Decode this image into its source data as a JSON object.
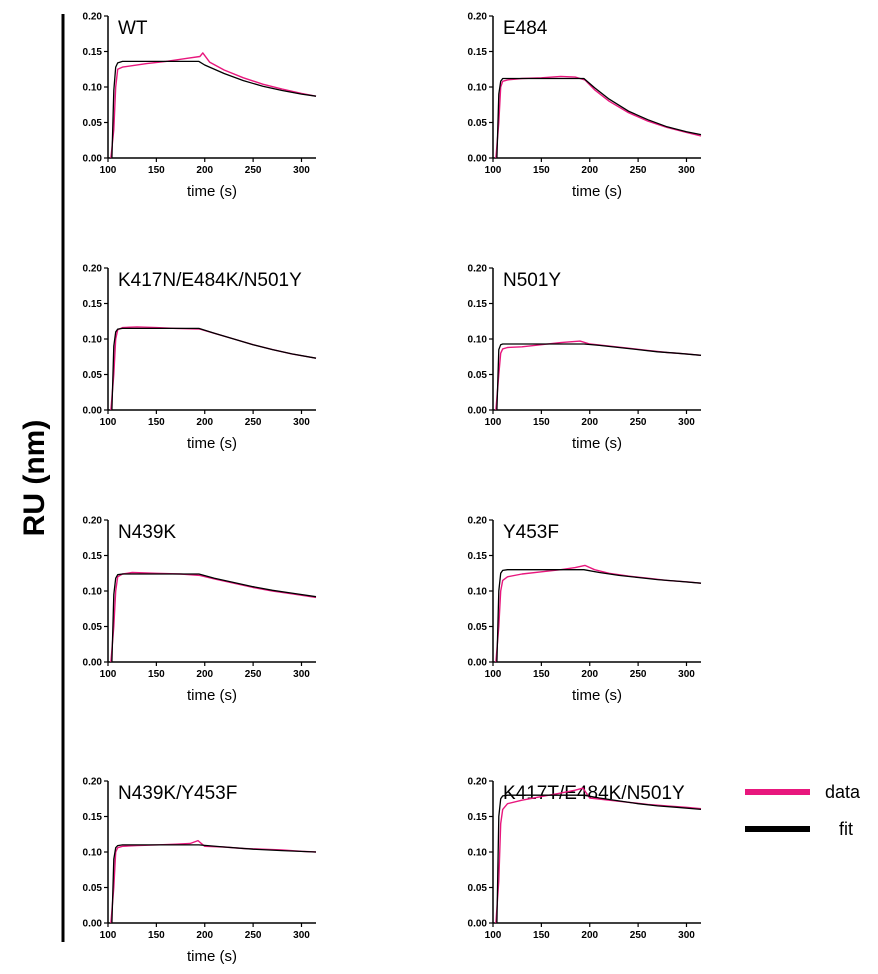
{
  "shared_ylabel": "RU (nm)",
  "legend": [
    {
      "label": "data",
      "color": "#e8177d"
    },
    {
      "label": "fit",
      "color": "#000000"
    }
  ],
  "colors": {
    "data": "#e8177d",
    "fit": "#000000",
    "axis": "#000000"
  },
  "chart_data": [
    {
      "type": "line",
      "title": "WT",
      "xlabel": "time (s)",
      "ylabel": "",
      "xlim": [
        100,
        315
      ],
      "ylim": [
        0,
        0.2
      ],
      "xticks": [
        100,
        150,
        200,
        250,
        300
      ],
      "xtick_labels": [
        "100",
        "150",
        "200",
        "250",
        "300"
      ],
      "yticks": [
        0,
        0.05,
        0.1,
        0.15,
        0.2
      ],
      "ytick_labels": [
        "0.00",
        "0.05",
        "0.10",
        "0.15",
        "0.20"
      ],
      "series": [
        {
          "name": "data",
          "x": [
            103,
            106,
            108,
            110,
            115,
            125,
            140,
            160,
            180,
            195,
            198,
            205,
            220,
            240,
            260,
            280,
            300,
            315
          ],
          "y": [
            0.0,
            0.04,
            0.1,
            0.125,
            0.128,
            0.13,
            0.133,
            0.136,
            0.14,
            0.143,
            0.148,
            0.135,
            0.124,
            0.113,
            0.104,
            0.097,
            0.091,
            0.087
          ]
        },
        {
          "name": "fit",
          "x": [
            104,
            106,
            108,
            110,
            115,
            125,
            150,
            175,
            194,
            200,
            220,
            240,
            260,
            280,
            300,
            315
          ],
          "y": [
            0.0,
            0.095,
            0.128,
            0.134,
            0.136,
            0.136,
            0.136,
            0.136,
            0.136,
            0.131,
            0.119,
            0.109,
            0.101,
            0.095,
            0.09,
            0.087
          ]
        }
      ]
    },
    {
      "type": "line",
      "title": "E484",
      "xlabel": "time (s)",
      "ylabel": "",
      "xlim": [
        100,
        315
      ],
      "ylim": [
        0,
        0.2
      ],
      "xticks": [
        100,
        150,
        200,
        250,
        300
      ],
      "xtick_labels": [
        "100",
        "150",
        "200",
        "250",
        "300"
      ],
      "yticks": [
        0,
        0.05,
        0.1,
        0.15,
        0.2
      ],
      "ytick_labels": [
        "0.00",
        "0.05",
        "0.10",
        "0.15",
        "0.20"
      ],
      "series": [
        {
          "name": "data",
          "x": [
            103,
            106,
            108,
            110,
            115,
            130,
            150,
            170,
            185,
            195,
            205,
            220,
            240,
            260,
            280,
            300,
            315
          ],
          "y": [
            0.0,
            0.05,
            0.1,
            0.108,
            0.11,
            0.112,
            0.113,
            0.115,
            0.114,
            0.11,
            0.096,
            0.08,
            0.064,
            0.052,
            0.043,
            0.036,
            0.031
          ]
        },
        {
          "name": "fit",
          "x": [
            104,
            106,
            108,
            110,
            115,
            150,
            194,
            205,
            220,
            240,
            260,
            280,
            300,
            315
          ],
          "y": [
            0.0,
            0.09,
            0.108,
            0.112,
            0.112,
            0.112,
            0.112,
            0.099,
            0.083,
            0.066,
            0.054,
            0.044,
            0.037,
            0.033
          ]
        }
      ]
    },
    {
      "type": "line",
      "title": "K417N/E484K/N501Y",
      "xlabel": "time (s)",
      "ylabel": "",
      "xlim": [
        100,
        315
      ],
      "ylim": [
        0,
        0.2
      ],
      "xticks": [
        100,
        150,
        200,
        250,
        300
      ],
      "xtick_labels": [
        "100",
        "150",
        "200",
        "250",
        "300"
      ],
      "yticks": [
        0,
        0.05,
        0.1,
        0.15,
        0.2
      ],
      "ytick_labels": [
        "0.00",
        "0.05",
        "0.10",
        "0.15",
        "0.20"
      ],
      "series": [
        {
          "name": "data",
          "x": [
            103,
            106,
            108,
            110,
            115,
            130,
            150,
            170,
            195,
            210,
            230,
            250,
            270,
            290,
            315
          ],
          "y": [
            0.0,
            0.05,
            0.1,
            0.113,
            0.116,
            0.117,
            0.116,
            0.115,
            0.114,
            0.108,
            0.1,
            0.092,
            0.085,
            0.079,
            0.073
          ]
        },
        {
          "name": "fit",
          "x": [
            104,
            106,
            108,
            110,
            115,
            150,
            194,
            210,
            230,
            250,
            270,
            290,
            315
          ],
          "y": [
            0.0,
            0.09,
            0.11,
            0.114,
            0.115,
            0.115,
            0.115,
            0.108,
            0.1,
            0.092,
            0.085,
            0.079,
            0.073
          ]
        }
      ]
    },
    {
      "type": "line",
      "title": "N501Y",
      "xlabel": "time (s)",
      "ylabel": "",
      "xlim": [
        100,
        315
      ],
      "ylim": [
        0,
        0.2
      ],
      "xticks": [
        100,
        150,
        200,
        250,
        300
      ],
      "xtick_labels": [
        "100",
        "150",
        "200",
        "250",
        "300"
      ],
      "yticks": [
        0,
        0.05,
        0.1,
        0.15,
        0.2
      ],
      "ytick_labels": [
        "0.00",
        "0.05",
        "0.10",
        "0.15",
        "0.20"
      ],
      "series": [
        {
          "name": "data",
          "x": [
            103,
            106,
            108,
            110,
            115,
            130,
            150,
            170,
            190,
            200,
            220,
            240,
            260,
            280,
            300,
            315
          ],
          "y": [
            0.0,
            0.05,
            0.08,
            0.086,
            0.088,
            0.089,
            0.092,
            0.095,
            0.097,
            0.093,
            0.09,
            0.087,
            0.084,
            0.081,
            0.079,
            0.077
          ]
        },
        {
          "name": "fit",
          "x": [
            104,
            106,
            108,
            110,
            115,
            194,
            210,
            230,
            250,
            270,
            290,
            315
          ],
          "y": [
            0.0,
            0.085,
            0.092,
            0.093,
            0.093,
            0.093,
            0.091,
            0.088,
            0.085,
            0.082,
            0.08,
            0.077
          ]
        }
      ]
    },
    {
      "type": "line",
      "title": "N439K",
      "xlabel": "time (s)",
      "ylabel": "",
      "xlim": [
        100,
        315
      ],
      "ylim": [
        0,
        0.2
      ],
      "xticks": [
        100,
        150,
        200,
        250,
        300
      ],
      "xtick_labels": [
        "100",
        "150",
        "200",
        "250",
        "300"
      ],
      "yticks": [
        0,
        0.05,
        0.1,
        0.15,
        0.2
      ],
      "ytick_labels": [
        "0.00",
        "0.05",
        "0.10",
        "0.15",
        "0.20"
      ],
      "series": [
        {
          "name": "data",
          "x": [
            103,
            106,
            108,
            110,
            115,
            125,
            150,
            175,
            195,
            210,
            230,
            250,
            270,
            290,
            315
          ],
          "y": [
            0.0,
            0.05,
            0.1,
            0.12,
            0.124,
            0.126,
            0.125,
            0.124,
            0.122,
            0.117,
            0.111,
            0.105,
            0.1,
            0.096,
            0.091
          ]
        },
        {
          "name": "fit",
          "x": [
            104,
            106,
            108,
            110,
            115,
            150,
            194,
            210,
            230,
            250,
            270,
            290,
            315
          ],
          "y": [
            0.0,
            0.095,
            0.118,
            0.123,
            0.124,
            0.124,
            0.124,
            0.118,
            0.112,
            0.106,
            0.101,
            0.097,
            0.092
          ]
        }
      ]
    },
    {
      "type": "line",
      "title": "Y453F",
      "xlabel": "time (s)",
      "ylabel": "",
      "xlim": [
        100,
        315
      ],
      "ylim": [
        0,
        0.2
      ],
      "xticks": [
        100,
        150,
        200,
        250,
        300
      ],
      "xtick_labels": [
        "100",
        "150",
        "200",
        "250",
        "300"
      ],
      "yticks": [
        0,
        0.05,
        0.1,
        0.15,
        0.2
      ],
      "ytick_labels": [
        "0.00",
        "0.05",
        "0.10",
        "0.15",
        "0.20"
      ],
      "series": [
        {
          "name": "data",
          "x": [
            103,
            106,
            108,
            110,
            115,
            130,
            150,
            170,
            185,
            195,
            205,
            220,
            240,
            260,
            280,
            300,
            315
          ],
          "y": [
            0.0,
            0.05,
            0.1,
            0.115,
            0.12,
            0.124,
            0.127,
            0.13,
            0.133,
            0.136,
            0.13,
            0.125,
            0.121,
            0.118,
            0.115,
            0.113,
            0.111
          ]
        },
        {
          "name": "fit",
          "x": [
            104,
            106,
            108,
            110,
            115,
            150,
            194,
            210,
            230,
            250,
            270,
            290,
            315
          ],
          "y": [
            0.0,
            0.1,
            0.125,
            0.129,
            0.13,
            0.13,
            0.13,
            0.126,
            0.122,
            0.119,
            0.116,
            0.114,
            0.111
          ]
        }
      ]
    },
    {
      "type": "line",
      "title": "N439K/Y453F",
      "xlabel": "time (s)",
      "ylabel": "",
      "xlim": [
        100,
        315
      ],
      "ylim": [
        0,
        0.2
      ],
      "xticks": [
        100,
        150,
        200,
        250,
        300
      ],
      "xtick_labels": [
        "100",
        "150",
        "200",
        "250",
        "300"
      ],
      "yticks": [
        0,
        0.05,
        0.1,
        0.15,
        0.2
      ],
      "ytick_labels": [
        "0.00",
        "0.05",
        "0.10",
        "0.15",
        "0.20"
      ],
      "series": [
        {
          "name": "data",
          "x": [
            103,
            106,
            108,
            110,
            115,
            130,
            150,
            170,
            185,
            193,
            200,
            220,
            240,
            260,
            280,
            300,
            315
          ],
          "y": [
            0.0,
            0.05,
            0.1,
            0.106,
            0.108,
            0.109,
            0.11,
            0.111,
            0.112,
            0.116,
            0.108,
            0.107,
            0.105,
            0.104,
            0.103,
            0.101,
            0.1
          ]
        },
        {
          "name": "fit",
          "x": [
            104,
            106,
            108,
            110,
            115,
            150,
            194,
            220,
            250,
            280,
            315
          ],
          "y": [
            0.0,
            0.09,
            0.106,
            0.109,
            0.11,
            0.11,
            0.11,
            0.107,
            0.104,
            0.102,
            0.1
          ]
        }
      ]
    },
    {
      "type": "line",
      "title": "K417T/E484K/N501Y",
      "xlabel": "",
      "ylabel": "",
      "xlim": [
        100,
        315
      ],
      "ylim": [
        0,
        0.2
      ],
      "xticks": [
        100,
        150,
        200,
        250,
        300
      ],
      "xtick_labels": [
        "100",
        "150",
        "200",
        "250",
        "300"
      ],
      "yticks": [
        0,
        0.05,
        0.1,
        0.15,
        0.2
      ],
      "ytick_labels": [
        "0.00",
        "0.05",
        "0.10",
        "0.15",
        "0.20"
      ],
      "series": [
        {
          "name": "data",
          "x": [
            103,
            106,
            108,
            110,
            115,
            130,
            150,
            170,
            185,
            193,
            200,
            220,
            240,
            260,
            280,
            300,
            315
          ],
          "y": [
            0.0,
            0.06,
            0.14,
            0.16,
            0.168,
            0.173,
            0.178,
            0.183,
            0.187,
            0.19,
            0.176,
            0.173,
            0.17,
            0.167,
            0.165,
            0.163,
            0.161
          ]
        },
        {
          "name": "fit",
          "x": [
            104,
            106,
            108,
            110,
            115,
            150,
            194,
            210,
            230,
            250,
            270,
            290,
            315
          ],
          "y": [
            0.0,
            0.15,
            0.175,
            0.179,
            0.18,
            0.18,
            0.18,
            0.176,
            0.172,
            0.168,
            0.165,
            0.163,
            0.16
          ]
        }
      ]
    }
  ]
}
